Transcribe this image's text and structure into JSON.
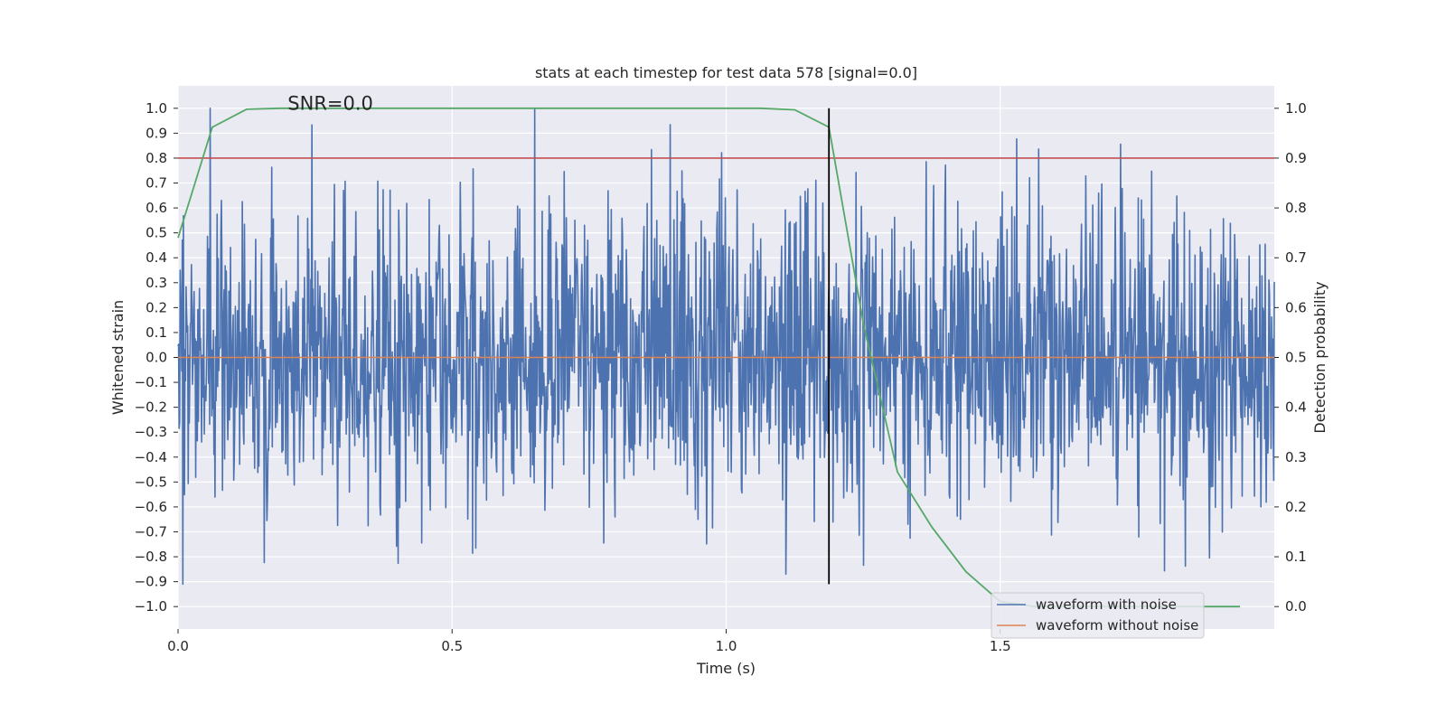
{
  "chart_data": {
    "type": "line",
    "title": "stats at each timestep for test data 578 [signal=0.0]",
    "xlabel": "Time (s)",
    "ylabel_left": "Whitened strain",
    "ylabel_right": "Detection probability",
    "xlim": [
      0.0,
      2.0
    ],
    "ylim_left": [
      -1.09,
      1.09
    ],
    "ylim_right": [
      -0.045,
      1.045
    ],
    "x_ticks": [
      0.0,
      0.5,
      1.0,
      1.5
    ],
    "x_tick_labels": [
      "0.0",
      "0.5",
      "1.0",
      "1.5"
    ],
    "y_left_ticks": [
      -1.0,
      -0.9,
      -0.8,
      -0.7,
      -0.6,
      -0.5,
      -0.4,
      -0.3,
      -0.2,
      -0.1,
      0.0,
      0.1,
      0.2,
      0.3,
      0.4,
      0.5,
      0.6,
      0.7,
      0.8,
      0.9,
      1.0
    ],
    "y_left_tick_labels": [
      "−1.0",
      "−0.9",
      "−0.8",
      "−0.7",
      "−0.6",
      "−0.5",
      "−0.4",
      "−0.3",
      "−0.2",
      "−0.1",
      "0.0",
      "0.1",
      "0.2",
      "0.3",
      "0.4",
      "0.5",
      "0.6",
      "0.7",
      "0.8",
      "0.9",
      "1.0"
    ],
    "y_right_ticks": [
      0.0,
      0.1,
      0.2,
      0.3,
      0.4,
      0.5,
      0.6,
      0.7,
      0.8,
      0.9,
      1.0
    ],
    "y_right_tick_labels": [
      "0.0",
      "0.1",
      "0.2",
      "0.3",
      "0.4",
      "0.5",
      "0.6",
      "0.7",
      "0.8",
      "0.9",
      "1.0"
    ],
    "annotation": "SNR=0.0",
    "annotation_at": {
      "x": 0.2,
      "y": 1.02
    },
    "noise_series": {
      "name": "waveform with noise",
      "color": "#4c72b0",
      "x_start": 0.0,
      "x_end": 2.0,
      "sample_count": 2048,
      "seed": 578,
      "amplitude_rms": 0.3,
      "peak_max": 1.0,
      "peak_min": -0.91
    },
    "clean_series": {
      "name": "waveform without noise",
      "color": "#dd8452",
      "x": [
        0.0,
        2.0
      ],
      "y": [
        0.0,
        0.0
      ]
    },
    "probability_series": {
      "name": "Detection probability",
      "color": "#55a868",
      "x": [
        0.0,
        0.0625,
        0.125,
        0.1875,
        0.25,
        0.3125,
        0.375,
        0.4375,
        0.5,
        0.5625,
        0.625,
        0.6875,
        0.75,
        0.8125,
        0.875,
        0.9375,
        1.0,
        1.0625,
        1.125,
        1.1875,
        1.25,
        1.3125,
        1.375,
        1.4375,
        1.5,
        1.5625,
        1.625,
        1.6875,
        1.75,
        1.8125,
        1.875,
        1.9375
      ],
      "y": [
        0.74,
        0.962,
        0.998,
        1.0,
        1.0,
        1.0,
        1.0,
        1.0,
        1.0,
        1.0,
        1.0,
        1.0,
        1.0,
        1.0,
        1.0,
        1.0,
        1.0,
        1.0,
        0.997,
        0.962,
        0.57,
        0.27,
        0.16,
        0.07,
        0.01,
        0.0,
        0.0,
        0.0,
        0.0,
        0.0,
        0.0,
        0.0
      ]
    },
    "threshold": {
      "value": 0.9,
      "axis": "right",
      "color": "#c44e52"
    },
    "marker_time": {
      "x": 1.1875,
      "y_range": [
        -0.91,
        1.0
      ],
      "color": "#000000"
    },
    "legend": {
      "placement": "bottom-right",
      "entries": [
        {
          "label": "waveform with noise",
          "color": "#4c72b0"
        },
        {
          "label": "waveform without noise",
          "color": "#dd8452"
        }
      ]
    },
    "grid": true,
    "background": "#eaeaf2"
  }
}
